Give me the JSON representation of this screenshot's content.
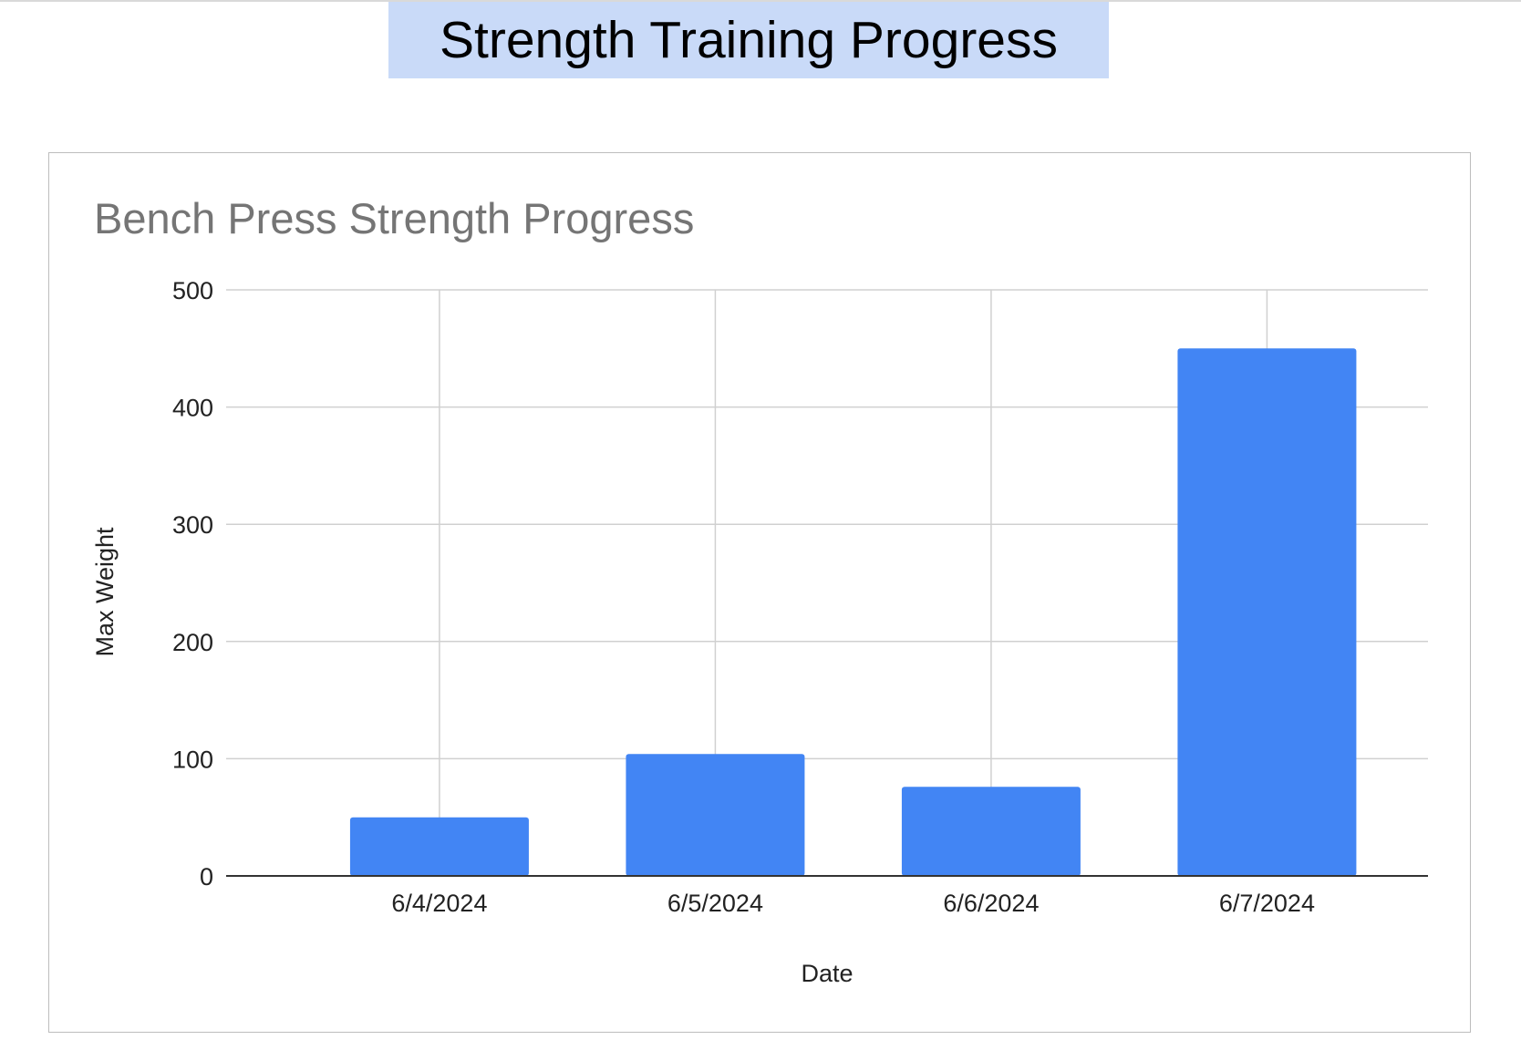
{
  "slide": {
    "title": "Strength Training Progress"
  },
  "chart_data": {
    "type": "bar",
    "title": "Bench Press Strength Progress",
    "xlabel": "Date",
    "ylabel": "Max Weight",
    "categories": [
      "6/4/2024",
      "6/5/2024",
      "6/6/2024",
      "6/7/2024"
    ],
    "values": [
      50,
      104,
      76,
      450
    ],
    "ylim": [
      0,
      500
    ],
    "yticks": [
      "0",
      "100",
      "200",
      "300",
      "400",
      "500"
    ],
    "grid": true,
    "legend": "none",
    "colors": {
      "bar": "#4285f4",
      "grid": "#d0d0d0",
      "axis": "#333333",
      "title": "#757575",
      "text": "#222222"
    }
  }
}
